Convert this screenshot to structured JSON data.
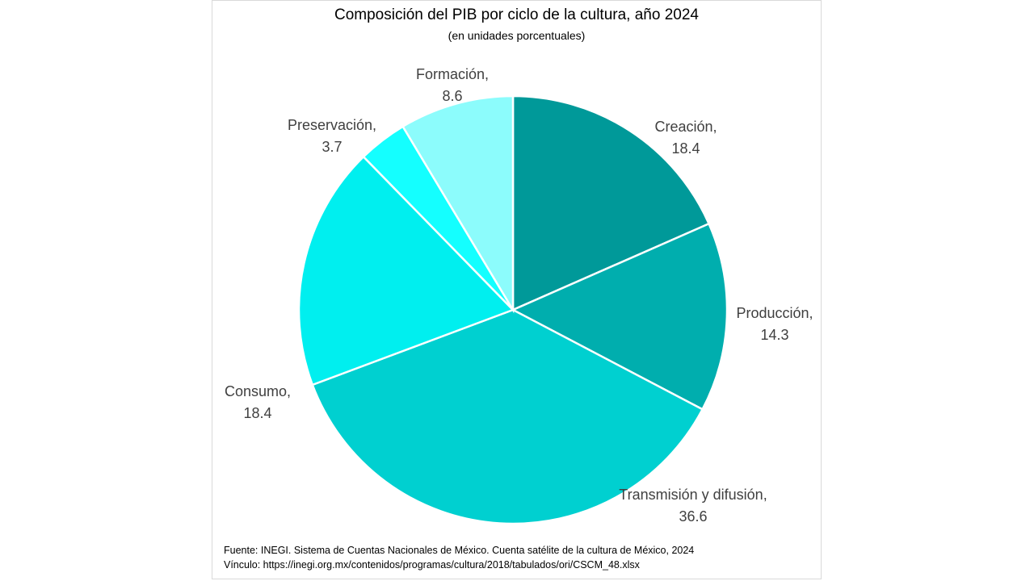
{
  "chart_data": {
    "type": "pie",
    "title": "Composición del PIB por ciclo de la cultura, año 2024",
    "subtitle": "(en unidades porcentuales)",
    "slices": [
      {
        "label": "Creación",
        "value": 18.4,
        "value_label": "18.4",
        "color": "#009999"
      },
      {
        "label": "Producción",
        "value": 14.3,
        "value_label": "14.3",
        "color": "#00aeae"
      },
      {
        "label": "Transmisión y difusión",
        "value": 36.6,
        "value_label": "36.6",
        "color": "#00d0d0"
      },
      {
        "label": "Consumo",
        "value": 18.4,
        "value_label": "18.4",
        "color": "#00efef"
      },
      {
        "label": "Preservación",
        "value": 3.7,
        "value_label": "3.7",
        "color": "#14ffff"
      },
      {
        "label": "Formación",
        "value": 8.6,
        "value_label": "8.6",
        "color": "#8cfcfc"
      }
    ],
    "start_angle_deg": 0,
    "direction": "clockwise"
  },
  "footer": {
    "source": "Fuente: INEGI. Sistema de Cuentas Nacionales de México. Cuenta satélite de la cultura de México, 2024",
    "link": "Vínculo: https://inegi.org.mx/contenidos/programas/cultura/2018/tabulados/ori/CSCM_48.xlsx"
  }
}
